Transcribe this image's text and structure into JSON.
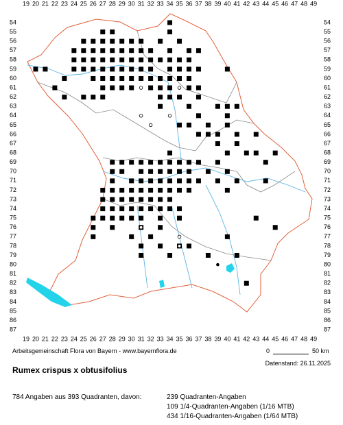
{
  "map": {
    "xticks": [
      19,
      20,
      21,
      22,
      23,
      24,
      25,
      26,
      27,
      28,
      29,
      30,
      31,
      32,
      33,
      34,
      35,
      36,
      37,
      38,
      39,
      40,
      41,
      42,
      43,
      44,
      45,
      46,
      47,
      48,
      49
    ],
    "yticks": [
      54,
      55,
      56,
      57,
      58,
      59,
      60,
      61,
      62,
      63,
      64,
      65,
      66,
      67,
      68,
      69,
      70,
      71,
      72,
      73,
      74,
      75,
      76,
      77,
      78,
      79,
      80,
      81,
      82,
      83,
      84,
      85,
      86,
      87
    ],
    "records": [
      [
        34,
        54
      ],
      [
        27,
        55
      ],
      [
        28,
        55
      ],
      [
        34,
        55
      ],
      [
        25,
        56
      ],
      [
        26,
        56
      ],
      [
        27,
        56
      ],
      [
        28,
        56
      ],
      [
        29,
        56
      ],
      [
        30,
        56
      ],
      [
        31,
        56
      ],
      [
        33,
        56
      ],
      [
        35,
        56
      ],
      [
        24,
        57
      ],
      [
        25,
        57
      ],
      [
        26,
        57
      ],
      [
        27,
        57
      ],
      [
        28,
        57
      ],
      [
        29,
        57
      ],
      [
        30,
        57
      ],
      [
        31,
        57
      ],
      [
        32,
        57
      ],
      [
        34,
        57
      ],
      [
        36,
        57
      ],
      [
        37,
        57
      ],
      [
        24,
        58
      ],
      [
        25,
        58
      ],
      [
        26,
        58
      ],
      [
        27,
        58
      ],
      [
        28,
        58
      ],
      [
        29,
        58
      ],
      [
        30,
        58
      ],
      [
        31,
        58
      ],
      [
        32,
        58
      ],
      [
        33,
        58
      ],
      [
        34,
        58
      ],
      [
        35,
        58
      ],
      [
        36,
        58
      ],
      [
        20,
        59
      ],
      [
        21,
        59
      ],
      [
        24,
        59
      ],
      [
        25,
        59
      ],
      [
        26,
        59
      ],
      [
        27,
        59
      ],
      [
        28,
        59
      ],
      [
        29,
        59
      ],
      [
        30,
        59
      ],
      [
        31,
        59
      ],
      [
        32,
        59
      ],
      [
        34,
        59
      ],
      [
        35,
        59
      ],
      [
        36,
        59
      ],
      [
        37,
        59
      ],
      [
        40,
        59
      ],
      [
        23,
        60
      ],
      [
        26,
        60
      ],
      [
        27,
        60
      ],
      [
        28,
        60
      ],
      [
        29,
        60
      ],
      [
        30,
        60
      ],
      [
        31,
        60
      ],
      [
        32,
        60
      ],
      [
        33,
        60
      ],
      [
        34,
        60
      ],
      [
        35,
        60
      ],
      [
        36,
        60
      ],
      [
        22,
        61
      ],
      [
        27,
        61
      ],
      [
        28,
        61
      ],
      [
        29,
        61
      ],
      [
        30,
        61
      ],
      [
        32,
        61
      ],
      [
        33,
        61
      ],
      [
        34,
        61
      ],
      [
        36,
        61
      ],
      [
        37,
        61
      ],
      [
        23,
        62
      ],
      [
        25,
        62
      ],
      [
        26,
        62
      ],
      [
        27,
        62
      ],
      [
        33,
        62
      ],
      [
        34,
        62
      ],
      [
        35,
        62
      ],
      [
        37,
        62
      ],
      [
        33,
        63
      ],
      [
        36,
        63
      ],
      [
        39,
        63
      ],
      [
        40,
        63
      ],
      [
        41,
        63
      ],
      [
        37,
        64
      ],
      [
        40,
        64
      ],
      [
        35,
        65
      ],
      [
        36,
        65
      ],
      [
        38,
        65
      ],
      [
        40,
        65
      ],
      [
        37,
        66
      ],
      [
        38,
        66
      ],
      [
        39,
        66
      ],
      [
        41,
        66
      ],
      [
        43,
        66
      ],
      [
        39,
        67
      ],
      [
        41,
        67
      ],
      [
        34,
        68
      ],
      [
        40,
        68
      ],
      [
        42,
        68
      ],
      [
        43,
        68
      ],
      [
        45,
        68
      ],
      [
        28,
        69
      ],
      [
        29,
        69
      ],
      [
        30,
        69
      ],
      [
        31,
        69
      ],
      [
        32,
        69
      ],
      [
        33,
        69
      ],
      [
        34,
        69
      ],
      [
        35,
        69
      ],
      [
        36,
        69
      ],
      [
        37,
        69
      ],
      [
        39,
        69
      ],
      [
        44,
        69
      ],
      [
        28,
        70
      ],
      [
        29,
        70
      ],
      [
        31,
        70
      ],
      [
        32,
        70
      ],
      [
        33,
        70
      ],
      [
        34,
        70
      ],
      [
        35,
        70
      ],
      [
        36,
        70
      ],
      [
        38,
        70
      ],
      [
        40,
        70
      ],
      [
        28,
        71
      ],
      [
        30,
        71
      ],
      [
        31,
        71
      ],
      [
        32,
        71
      ],
      [
        33,
        71
      ],
      [
        34,
        71
      ],
      [
        35,
        71
      ],
      [
        36,
        71
      ],
      [
        37,
        71
      ],
      [
        39,
        71
      ],
      [
        41,
        71
      ],
      [
        44,
        71
      ],
      [
        27,
        72
      ],
      [
        28,
        72
      ],
      [
        29,
        72
      ],
      [
        30,
        72
      ],
      [
        31,
        72
      ],
      [
        32,
        72
      ],
      [
        33,
        72
      ],
      [
        34,
        72
      ],
      [
        35,
        72
      ],
      [
        36,
        72
      ],
      [
        40,
        72
      ],
      [
        27,
        73
      ],
      [
        28,
        73
      ],
      [
        29,
        73
      ],
      [
        30,
        73
      ],
      [
        31,
        73
      ],
      [
        32,
        73
      ],
      [
        33,
        73
      ],
      [
        34,
        73
      ],
      [
        27,
        74
      ],
      [
        28,
        74
      ],
      [
        29,
        74
      ],
      [
        30,
        74
      ],
      [
        31,
        74
      ],
      [
        32,
        74
      ],
      [
        33,
        74
      ],
      [
        34,
        74
      ],
      [
        35,
        74
      ],
      [
        26,
        75
      ],
      [
        27,
        75
      ],
      [
        28,
        75
      ],
      [
        29,
        75
      ],
      [
        30,
        75
      ],
      [
        31,
        75
      ],
      [
        33,
        75
      ],
      [
        35,
        75
      ],
      [
        43,
        75
      ],
      [
        26,
        76
      ],
      [
        28,
        76
      ],
      [
        31,
        76
      ],
      [
        33,
        76
      ],
      [
        45,
        76
      ],
      [
        26,
        77
      ],
      [
        30,
        77
      ],
      [
        32,
        77
      ],
      [
        40,
        77
      ],
      [
        31,
        78
      ],
      [
        33,
        78
      ],
      [
        35,
        78
      ],
      [
        36,
        78
      ],
      [
        31,
        79
      ],
      [
        34,
        79
      ],
      [
        38,
        79
      ],
      [
        41,
        79
      ],
      [
        42,
        82
      ]
    ],
    "open_records": [
      [
        31,
        61
      ],
      [
        31,
        64
      ],
      [
        32,
        65
      ],
      [
        34,
        64
      ],
      [
        35,
        61
      ],
      [
        31,
        76
      ],
      [
        35,
        77
      ],
      [
        35,
        78
      ]
    ],
    "dot_records": [
      [
        20,
        59
      ],
      [
        39,
        80
      ]
    ],
    "credit": "Arbeitsgemeinschaft Flora von Bayern - www.bayernflora.de",
    "scale_start": "0",
    "scale_end": "50 km",
    "date": "Datenstand: 26.11.2025",
    "species": "Rumex crispus x obtusifolius",
    "summary": "784 Angaben aus 393 Quadranten, davon:",
    "counts": [
      "239 Quadranten-Angaben",
      "109 1/4-Quadranten-Angaben (1/16 MTB)",
      "434 1/16-Quadranten-Angaben (1/64 MTB)"
    ]
  }
}
